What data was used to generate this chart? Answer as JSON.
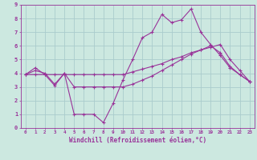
{
  "xlabel": "Windchill (Refroidissement éolien,°C)",
  "ylabel": "",
  "bg_color": "#cce8e0",
  "grid_color": "#aacccc",
  "line_color": "#993399",
  "xlim": [
    -0.5,
    23.5
  ],
  "ylim": [
    0,
    9
  ],
  "xticks": [
    0,
    1,
    2,
    3,
    4,
    5,
    6,
    7,
    8,
    9,
    10,
    11,
    12,
    13,
    14,
    15,
    16,
    17,
    18,
    19,
    20,
    21,
    22,
    23
  ],
  "yticks": [
    0,
    1,
    2,
    3,
    4,
    5,
    6,
    7,
    8,
    9
  ],
  "series": [
    [
      3.9,
      4.4,
      3.9,
      3.1,
      4.0,
      1.0,
      1.0,
      1.0,
      0.4,
      1.8,
      3.5,
      5.0,
      6.6,
      7.0,
      8.3,
      7.7,
      7.9,
      8.7,
      7.0,
      6.1,
      5.3,
      4.4,
      3.9,
      3.4
    ],
    [
      3.9,
      3.9,
      3.9,
      3.9,
      3.9,
      3.9,
      3.9,
      3.9,
      3.9,
      3.9,
      3.9,
      4.1,
      4.3,
      4.5,
      4.7,
      5.0,
      5.2,
      5.5,
      5.7,
      5.9,
      6.1,
      5.0,
      4.2,
      3.4
    ],
    [
      3.9,
      4.2,
      4.0,
      3.2,
      4.0,
      3.0,
      3.0,
      3.0,
      3.0,
      3.0,
      3.0,
      3.2,
      3.5,
      3.8,
      4.2,
      4.6,
      5.0,
      5.4,
      5.7,
      6.0,
      5.5,
      4.5,
      3.9,
      3.4
    ]
  ]
}
